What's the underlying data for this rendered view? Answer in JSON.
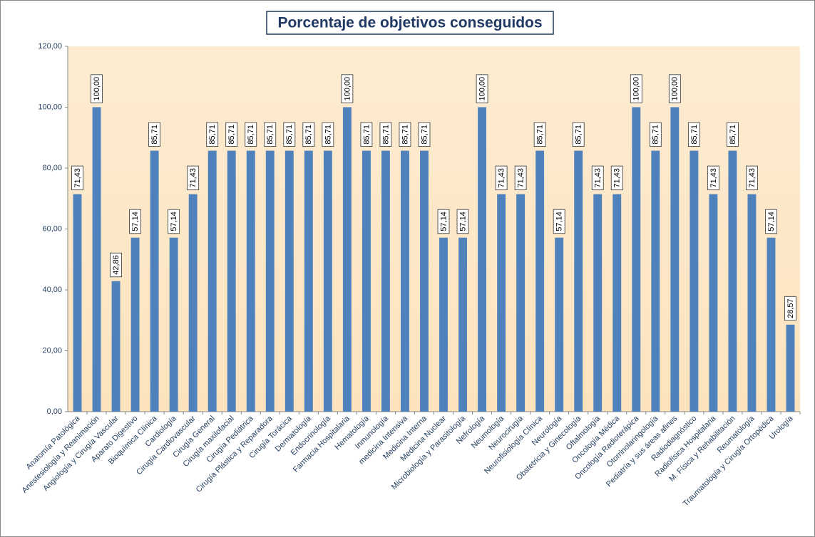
{
  "chart_data": {
    "type": "bar",
    "title": "Porcentaje de objetivos conseguidos",
    "categories": [
      "Anatomía Patológica",
      "Anestesiología y Reanimación",
      "Angiología y Cirugía Vascular",
      "Aparato Digestivo",
      "Bioquímica Clínica",
      "Cardiología",
      "Cirugía Cardiovascular",
      "Cirugía General",
      "Cirugía maxilofacial",
      "Cirugía Pediátrica",
      "Cirugía Plástica y Reparadora",
      "Cirugía Torácica",
      "Dermatología",
      "Endocrinología",
      "Farmacia Hospitalaria",
      "Hematología",
      "Inmunología",
      "medicina Intensiva",
      "Medicina Interna",
      "Medicina Nuclear",
      "Microbiología y Parasitología",
      "Nefrología",
      "Neumología",
      "Neurocirugía",
      "Neurofisiología Clínica",
      "Neurología",
      "Obstetricia y Ginecología",
      "Oftalmología",
      "Oncología Médica",
      "Oncología Radioterápica",
      "Otorrinolaringología",
      "Pediatría y sus áreas afines",
      "Radiodiagnóstico",
      "Radiofísica Hospitalaria",
      "M. Física y Rehabilitación",
      "Reumatología",
      "Traumatología y Cirugía Ortopédica",
      "Urología"
    ],
    "values": [
      71.43,
      100,
      42.86,
      57.14,
      85.71,
      57.14,
      71.43,
      85.71,
      85.71,
      85.71,
      85.71,
      85.71,
      85.71,
      85.71,
      100,
      85.71,
      85.71,
      85.71,
      85.71,
      57.14,
      57.14,
      100,
      71.43,
      71.43,
      85.71,
      57.14,
      85.71,
      71.43,
      71.43,
      100,
      85.71,
      100,
      85.71,
      71.43,
      85.71,
      71.43,
      57.14,
      28.57
    ],
    "value_labels": [
      "71,43",
      "100,00",
      "42,86",
      "57,14",
      "85,71",
      "57,14",
      "71,43",
      "85,71",
      "85,71",
      "85,71",
      "85,71",
      "85,71",
      "85,71",
      "85,71",
      "100,00",
      "85,71",
      "85,71",
      "85,71",
      "85,71",
      "57,14",
      "57,14",
      "100,00",
      "71,43",
      "71,43",
      "85,71",
      "57,14",
      "85,71",
      "71,43",
      "71,43",
      "100,00",
      "85,71",
      "100,00",
      "85,71",
      "71,43",
      "85,71",
      "71,43",
      "57,14",
      "28,57"
    ],
    "color": "#4f81bd",
    "ylim": [
      0,
      120
    ],
    "yticks": [
      {
        "value": 0,
        "label": "0,00"
      },
      {
        "value": 20,
        "label": "20,00"
      },
      {
        "value": 40,
        "label": "40,00"
      },
      {
        "value": 60,
        "label": "60,00"
      },
      {
        "value": 80,
        "label": "80,00"
      },
      {
        "value": 100,
        "label": "100,00"
      },
      {
        "value": 120,
        "label": "120,00"
      }
    ],
    "grid": false
  }
}
